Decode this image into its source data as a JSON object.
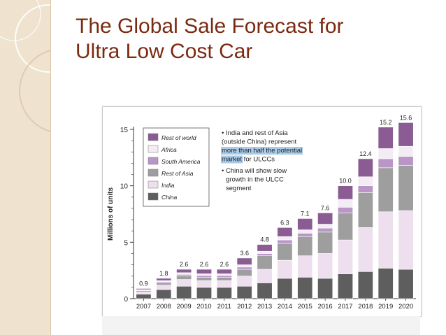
{
  "slide": {
    "title_lines": [
      "The Global Sale Forecast for",
      "Ultra Low Cost Car"
    ]
  },
  "colors": {
    "title": "#7a2a10",
    "side_panel": "#efe3cf",
    "highlight": "#a9cbe9"
  },
  "chart_data": {
    "type": "bar",
    "stacked": true,
    "title": "",
    "xlabel": "",
    "ylabel": "Millions of units",
    "ylim": [
      0,
      15
    ],
    "yticks": [
      0,
      5,
      10,
      15
    ],
    "categories": [
      "2007",
      "2008",
      "2009",
      "2010",
      "2011",
      "2012",
      "2013",
      "2014",
      "2015",
      "2016",
      "2017",
      "2018",
      "2019",
      "2020"
    ],
    "totals": [
      0.9,
      1.8,
      2.6,
      2.6,
      2.6,
      3.6,
      4.8,
      6.3,
      7.1,
      7.6,
      10.0,
      12.4,
      15.2,
      15.6
    ],
    "total_labels": [
      "0.9",
      "1.8",
      "2.6",
      "2.6",
      "2.6",
      "3.6",
      "4.8",
      "6.3",
      "7.1",
      "7.6",
      "10.0",
      "12.4",
      "15.2",
      "15.6"
    ],
    "series": [
      {
        "name": "China",
        "color": "#5e5e5e",
        "values": [
          0.4,
          0.8,
          1.1,
          1.0,
          1.0,
          1.1,
          1.4,
          1.8,
          1.9,
          1.8,
          2.2,
          2.4,
          2.7,
          2.6
        ]
      },
      {
        "name": "India",
        "color": "#eedfee",
        "values": [
          0.2,
          0.4,
          0.6,
          0.6,
          0.6,
          0.9,
          1.2,
          1.6,
          1.9,
          2.2,
          3.0,
          3.9,
          5.0,
          5.2
        ]
      },
      {
        "name": "Rest of Asia",
        "color": "#9e9e9e",
        "values": [
          0.1,
          0.2,
          0.3,
          0.3,
          0.3,
          0.6,
          1.2,
          1.5,
          1.7,
          1.9,
          2.4,
          3.1,
          3.9,
          4.0
        ]
      },
      {
        "name": "South America",
        "color": "#b995c8",
        "values": [
          0.05,
          0.1,
          0.15,
          0.15,
          0.15,
          0.2,
          0.2,
          0.3,
          0.3,
          0.35,
          0.5,
          0.6,
          0.8,
          0.8
        ]
      },
      {
        "name": "Africa",
        "color": "#f4ecf5",
        "values": [
          0.05,
          0.1,
          0.15,
          0.15,
          0.15,
          0.2,
          0.2,
          0.3,
          0.3,
          0.35,
          0.7,
          0.8,
          0.9,
          0.9
        ]
      },
      {
        "name": "Rest of world",
        "color": "#8a5c93",
        "values": [
          0.1,
          0.2,
          0.3,
          0.4,
          0.4,
          0.6,
          0.6,
          0.8,
          1.0,
          1.0,
          1.2,
          1.6,
          1.9,
          2.1
        ]
      }
    ],
    "legend_order": [
      "Rest of world",
      "Africa",
      "South America",
      "Rest of Asia",
      "India",
      "China"
    ],
    "legend_position": "top-left",
    "annotations": {
      "bullet_one": [
        {
          "text": "• India and rest of Asia",
          "highlight": false
        },
        {
          "text": "(outside China) represent",
          "highlight": false
        },
        {
          "text": "more than half the potential",
          "highlight": true
        },
        {
          "text": "market",
          "highlight": true,
          "suffix": " for ULCCs"
        }
      ],
      "bullet_two": [
        {
          "text": "• China will show slow",
          "highlight": false
        },
        {
          "text": "growth in the ULCC",
          "highlight": false
        },
        {
          "text": "segment",
          "highlight": false
        }
      ]
    }
  }
}
